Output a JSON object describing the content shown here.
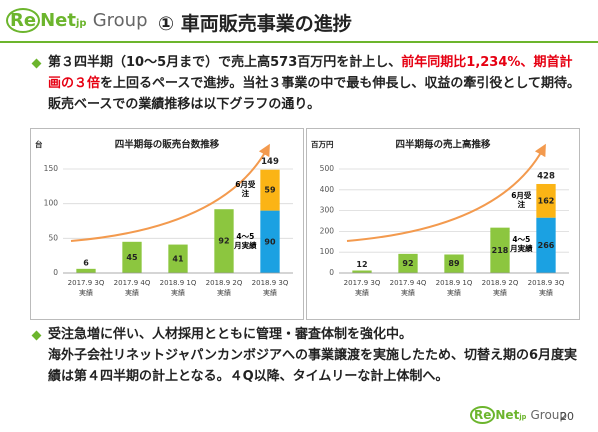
{
  "header": {
    "logo": {
      "re": "Re",
      "net": "Net",
      "jp": "jp",
      "group": "Group"
    },
    "title": "① 車両販売事業の進捗"
  },
  "bullets": [
    {
      "segments": [
        {
          "text": "第３四半期（10～5月まで）で売上高573百万円を計上し、",
          "emphasis": false
        },
        {
          "text": "前年同期比1,234%、",
          "emphasis": true
        },
        {
          "text": "期首計画の３倍",
          "emphasis": true
        },
        {
          "text": "を上回るペースで進捗。当社３事業の中で最も伸長し、収益の牽引役として期待。販売ベースでの業績推移は以下グラフの通り。",
          "emphasis": false
        }
      ]
    },
    {
      "segments": [
        {
          "text": "受注急増に伴い、人材採用とともに管理・審査体制を強化中。",
          "emphasis": false
        }
      ]
    }
  ],
  "paragraph": "海外子会社リネットジャパンカンボジアへの事業譲渡を実施したため、切替え期の6月度実績は第４四半期の計上となる。４Q以降、タイムリーな計上体制へ。",
  "emphasis_color": "#e60012",
  "chart_data": [
    {
      "type": "stacked-bar",
      "title": "四半期毎の販売台数推移",
      "y_unit": "台",
      "categories": [
        "2017.9 3Q",
        "2017.9 4Q",
        "2018.9 1Q",
        "2018.9 2Q",
        "2018.9 3Q"
      ],
      "category_sublabels": [
        "実績",
        "実績",
        "実績",
        "実績",
        "実績"
      ],
      "series": [
        {
          "color": "#8cc63f",
          "values": [
            6,
            45,
            41,
            92,
            null
          ]
        },
        {
          "name": "4～5月実績",
          "color": "#1ba1e2",
          "values": [
            null,
            null,
            null,
            null,
            90
          ]
        },
        {
          "name": "6月受注",
          "color": "#fbb415",
          "values": [
            null,
            null,
            null,
            null,
            59
          ]
        }
      ],
      "totals": [
        null,
        null,
        null,
        null,
        149
      ],
      "ylim": [
        0,
        150
      ],
      "yticks": [
        0,
        50,
        100,
        150
      ],
      "grid": true
    },
    {
      "type": "stacked-bar",
      "title": "四半期毎の売上高推移",
      "y_unit": "百万円",
      "categories": [
        "2017.9 3Q",
        "2017.9 4Q",
        "2018.9 1Q",
        "2018.9 2Q",
        "2018.9 3Q"
      ],
      "category_sublabels": [
        "実績",
        "実績",
        "実績",
        "実績",
        "実績"
      ],
      "series": [
        {
          "color": "#8cc63f",
          "values": [
            12,
            92,
            89,
            218,
            null
          ]
        },
        {
          "name": "4～5月実績",
          "color": "#1ba1e2",
          "values": [
            null,
            null,
            null,
            null,
            266
          ]
        },
        {
          "name": "6月受注",
          "color": "#fbb415",
          "values": [
            null,
            null,
            null,
            null,
            162
          ]
        }
      ],
      "totals": [
        null,
        null,
        null,
        null,
        428
      ],
      "ylim": [
        0,
        500
      ],
      "yticks": [
        0,
        100,
        200,
        300,
        400,
        500
      ],
      "grid": true
    }
  ],
  "footer": {
    "logo": {
      "re": "Re",
      "net": "Net",
      "jp": "jp",
      "group": "Group"
    },
    "page": "20"
  }
}
